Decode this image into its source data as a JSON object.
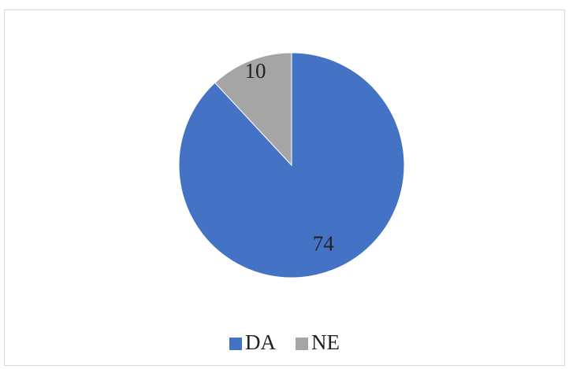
{
  "chart_data": {
    "type": "pie",
    "categories": [
      "DA",
      "NE"
    ],
    "values": [
      74,
      10
    ],
    "colors": [
      "#4472c4",
      "#a5a5a5"
    ],
    "legend": "bottom"
  }
}
